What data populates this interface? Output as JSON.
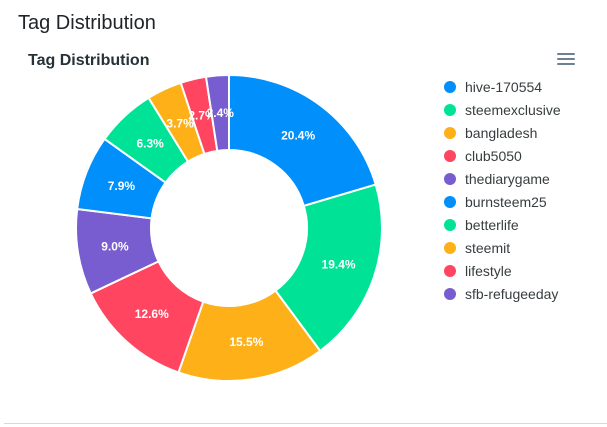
{
  "header": {
    "title": "Tag Distribution"
  },
  "chart_data": {
    "type": "pie",
    "variant": "donut",
    "title": "Tag Distribution",
    "legend_position": "right",
    "categories": [
      "hive-170554",
      "steemexclusive",
      "bangladesh",
      "club5050",
      "thediarygame",
      "burnsteem25",
      "betterlife",
      "steemit",
      "lifestyle",
      "sfb-refugeeday"
    ],
    "values": [
      20.4,
      19.4,
      15.5,
      12.6,
      9.0,
      7.9,
      6.3,
      3.7,
      2.7,
      2.4
    ],
    "labels": [
      "20.4%",
      "19.4%",
      "15.5%",
      "12.6%",
      "9.0%",
      "7.9%",
      "6.3%",
      "3.7%",
      "2.7%",
      "2.4%"
    ],
    "colors": [
      "#008FFB",
      "#00E396",
      "#FEB019",
      "#FF4560",
      "#775DD0",
      "#008FFB",
      "#00E396",
      "#FEB019",
      "#FF4560",
      "#775DD0"
    ]
  },
  "toolbar": {
    "menu_icon": "hamburger-menu-icon"
  }
}
